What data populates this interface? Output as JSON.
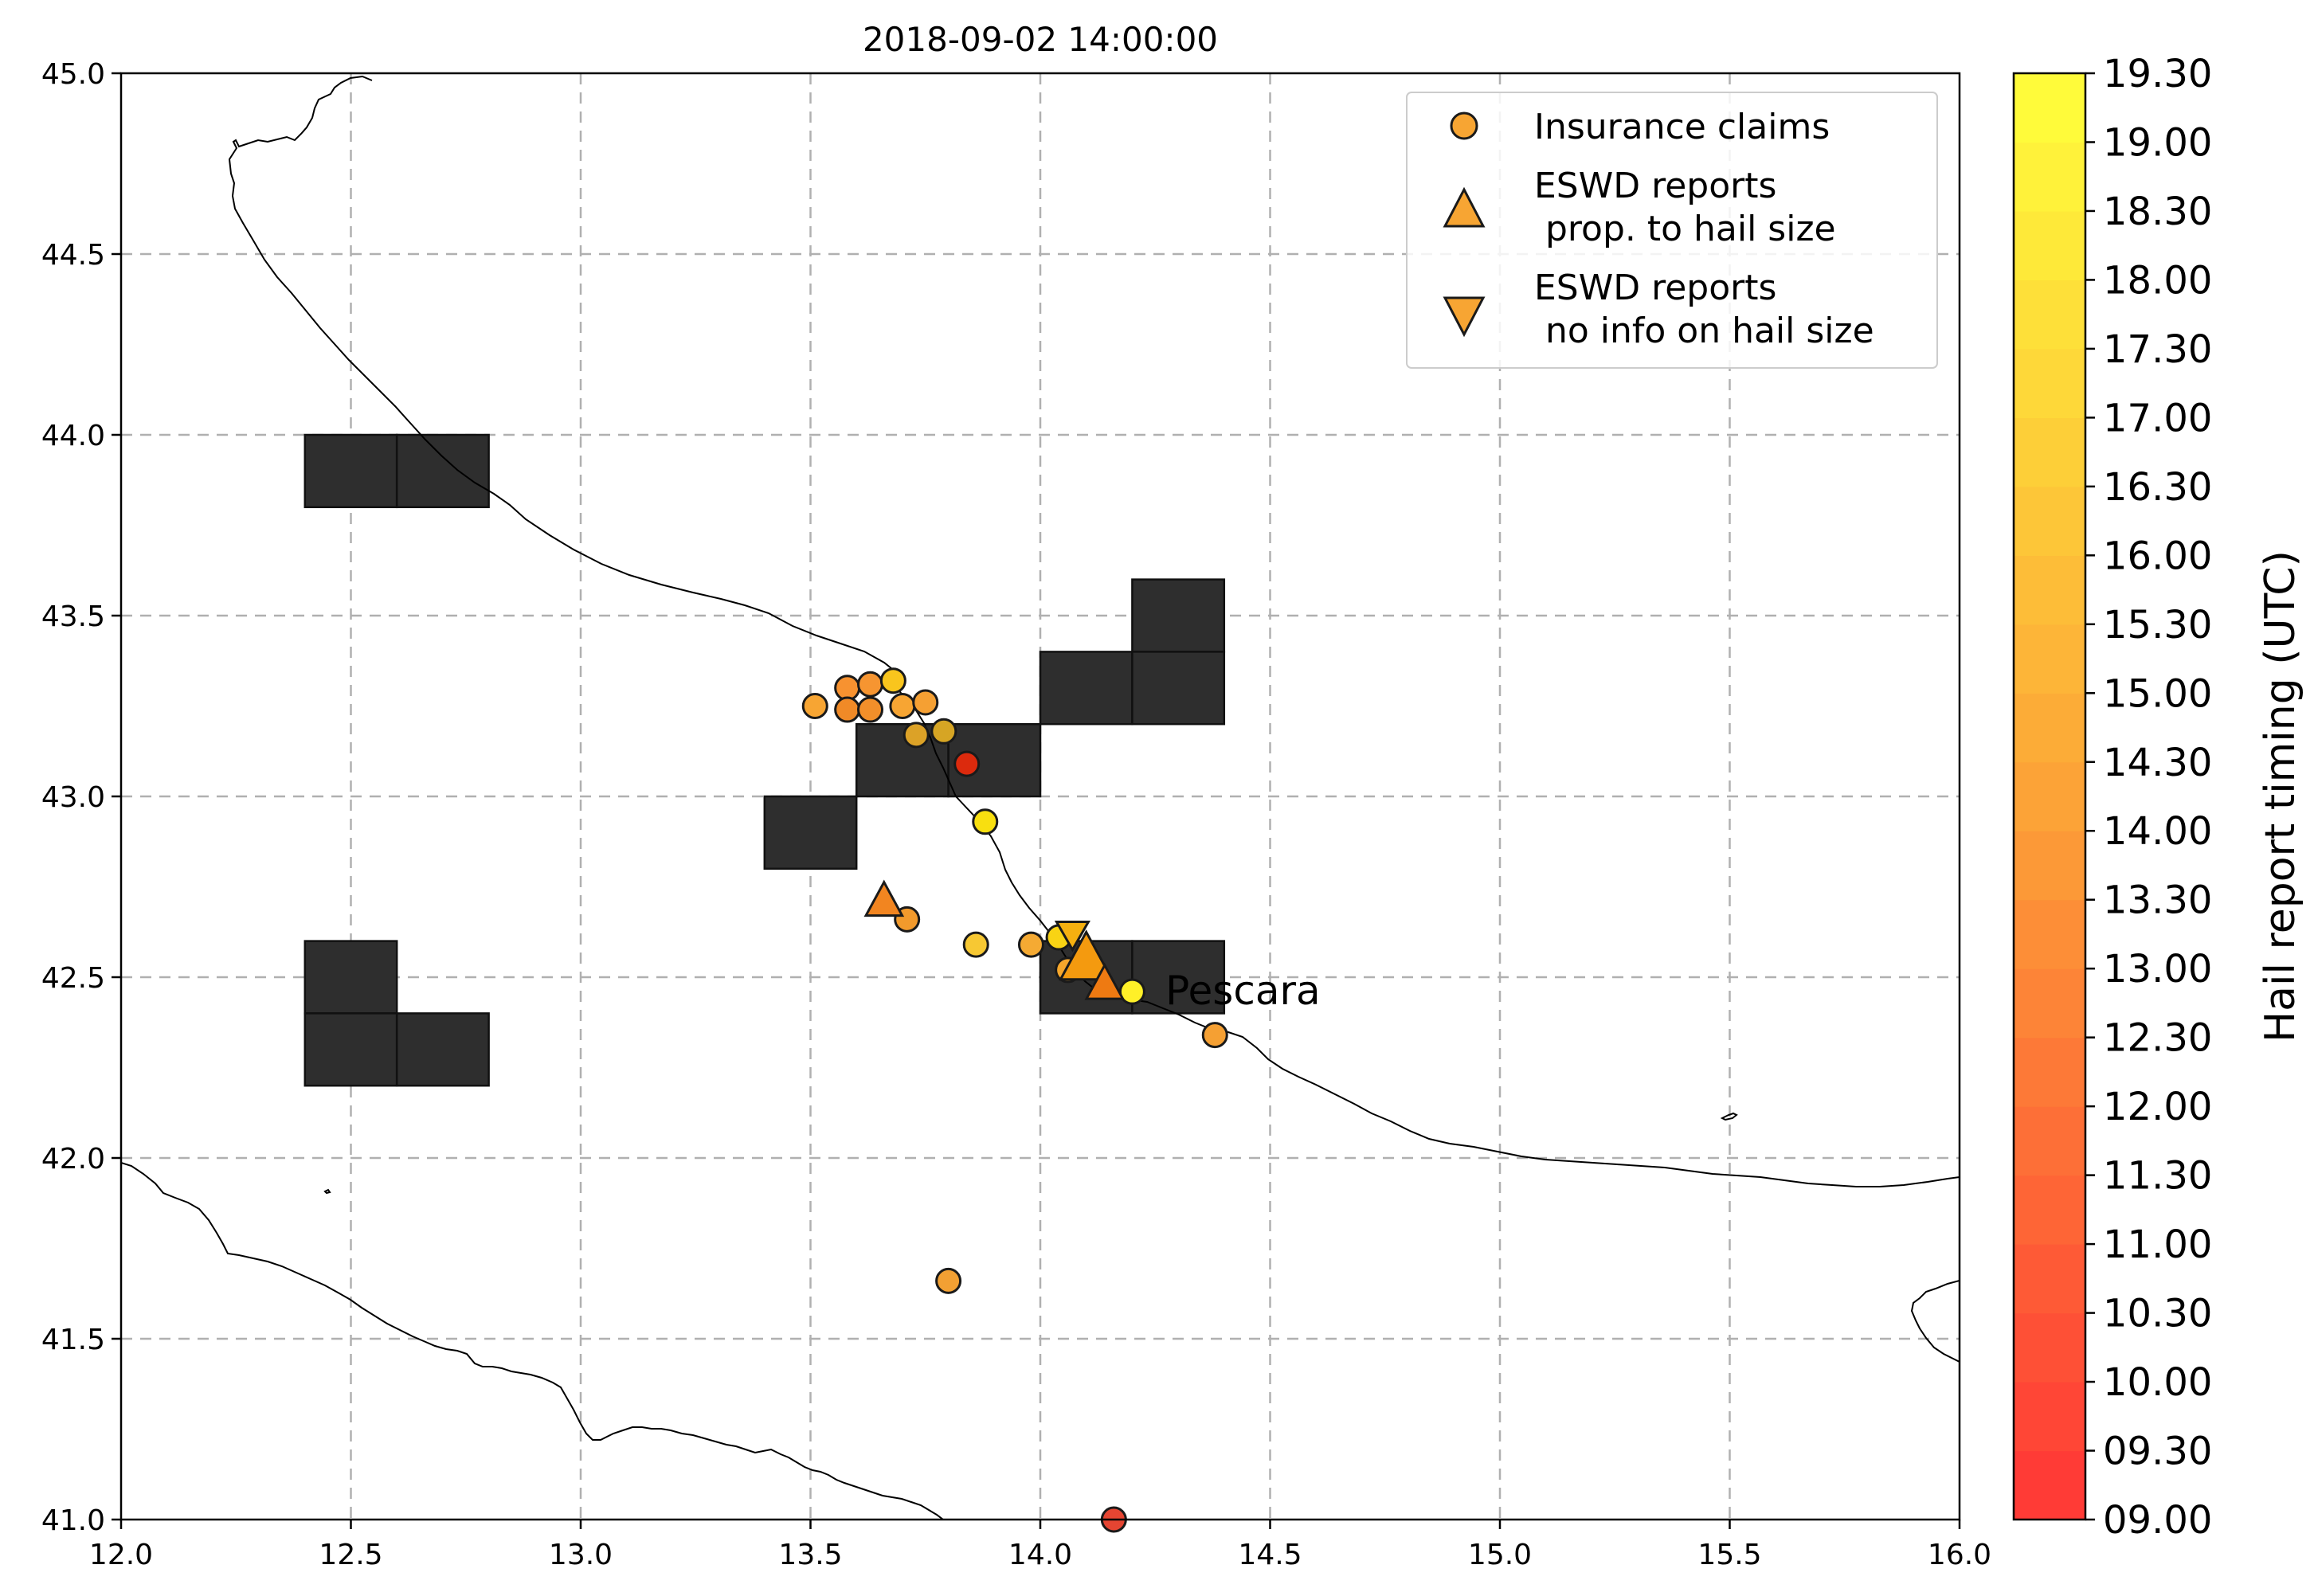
{
  "title": "2018-09-02 14:00:00",
  "map": {
    "xlim": [
      12.0,
      16.0
    ],
    "ylim": [
      41.0,
      45.0
    ],
    "x_ticks": [
      "12.0",
      "12.5",
      "13.0",
      "13.5",
      "14.0",
      "14.5",
      "15.0",
      "15.5",
      "16.0"
    ],
    "y_ticks": [
      "41.0",
      "41.5",
      "42.0",
      "42.5",
      "43.0",
      "43.5",
      "44.0",
      "44.5",
      "45.0"
    ],
    "grid": true,
    "grid_color": "#b0b0b0",
    "coast_color": "#000000",
    "cell_color": "#2e2e2e",
    "city_label": "Pescara"
  },
  "chart_data": {
    "type": "scatter",
    "xlim": [
      12.0,
      16.0
    ],
    "ylim": [
      41.0,
      45.0
    ],
    "grid": true,
    "legend_position": "top-right",
    "legend": [
      {
        "marker": "circle",
        "label_lines": [
          "Insurance claims"
        ]
      },
      {
        "marker": "triangle-up",
        "label_lines": [
          "ESWD reports",
          " prop. to hail size"
        ]
      },
      {
        "marker": "triangle-down",
        "label_lines": [
          "ESWD reports",
          " no info on hail size"
        ]
      }
    ],
    "grid_cells": [
      [
        12.4,
        43.8
      ],
      [
        12.6,
        43.8
      ],
      [
        14.2,
        43.4
      ],
      [
        14.0,
        43.2
      ],
      [
        14.2,
        43.2
      ],
      [
        13.6,
        43.0
      ],
      [
        13.8,
        43.0
      ],
      [
        13.4,
        42.8
      ],
      [
        12.4,
        42.4
      ],
      [
        14.0,
        42.4
      ],
      [
        14.2,
        42.4
      ],
      [
        12.4,
        42.2
      ],
      [
        12.6,
        42.2
      ]
    ],
    "grid_cell_size_deg": 0.2,
    "insurance_claims": [
      {
        "lon": 13.51,
        "lat": 43.25,
        "color": "#f7a533"
      },
      {
        "lon": 13.58,
        "lat": 43.3,
        "color": "#f79230"
      },
      {
        "lon": 13.63,
        "lat": 43.31,
        "color": "#f69531"
      },
      {
        "lon": 13.68,
        "lat": 43.32,
        "color": "#f9c51d"
      },
      {
        "lon": 13.58,
        "lat": 43.24,
        "color": "#f08a27"
      },
      {
        "lon": 13.63,
        "lat": 43.24,
        "color": "#f28f2a"
      },
      {
        "lon": 13.7,
        "lat": 43.25,
        "color": "#f7a533"
      },
      {
        "lon": 13.75,
        "lat": 43.26,
        "color": "#f5a033"
      },
      {
        "lon": 13.73,
        "lat": 43.17,
        "color": "#dca227"
      },
      {
        "lon": 13.79,
        "lat": 43.18,
        "color": "#d6a524"
      },
      {
        "lon": 13.84,
        "lat": 43.09,
        "color": "#dc2a0d"
      },
      {
        "lon": 13.88,
        "lat": 42.93,
        "color": "#f8df10"
      },
      {
        "lon": 13.71,
        "lat": 42.66,
        "color": "#f29a2c"
      },
      {
        "lon": 13.86,
        "lat": 42.59,
        "color": "#f7c833"
      },
      {
        "lon": 13.98,
        "lat": 42.59,
        "color": "#f5aa33"
      },
      {
        "lon": 14.04,
        "lat": 42.61,
        "color": "#f8d314"
      },
      {
        "lon": 14.06,
        "lat": 42.52,
        "color": "#f5a62c"
      },
      {
        "lon": 14.2,
        "lat": 42.46,
        "color": "#fff028"
      },
      {
        "lon": 14.38,
        "lat": 42.34,
        "color": "#f5a033"
      },
      {
        "lon": 13.8,
        "lat": 41.66,
        "color": "#f2a033"
      },
      {
        "lon": 14.16,
        "lat": 41.0,
        "color": "#e54532"
      }
    ],
    "eswd_prop_size": [
      {
        "lon": 13.66,
        "lat": 42.71,
        "color": "#f28520",
        "size": "medium"
      },
      {
        "lon": 14.1,
        "lat": 42.55,
        "color": "#f49a0f",
        "size": "large"
      },
      {
        "lon": 14.14,
        "lat": 42.48,
        "color": "#ee7a12",
        "size": "medium"
      }
    ],
    "eswd_no_size": [
      {
        "lon": 14.07,
        "lat": 42.62,
        "color": "#f5b010"
      }
    ],
    "city": {
      "name": "Pescara",
      "lon": 14.21,
      "lat": 42.46
    }
  },
  "colorbar": {
    "label": "Hail report timing (UTC)",
    "tick_labels": [
      "09.00",
      "09.30",
      "10.00",
      "10.30",
      "11.00",
      "11.30",
      "12.00",
      "12.30",
      "13.00",
      "13.30",
      "14.00",
      "14.30",
      "15.00",
      "15.30",
      "16.00",
      "16.30",
      "17.00",
      "17.30",
      "18.00",
      "18.30",
      "19.00",
      "19.30"
    ],
    "color_bottom": "#ff3636",
    "color_mid": "#fca337",
    "color_top": "#ffff3a",
    "levels": 21
  }
}
